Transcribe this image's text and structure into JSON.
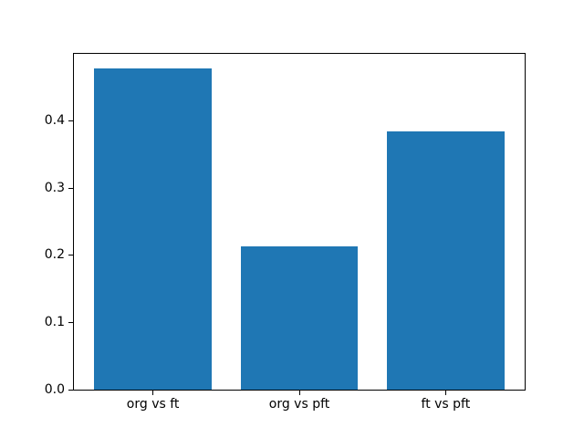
{
  "figure": {
    "background": "#ffffff"
  },
  "chart_data": {
    "type": "bar",
    "title": "",
    "xlabel": "",
    "ylabel": "",
    "categories": [
      "org vs ft",
      "org vs pft",
      "ft vs pft"
    ],
    "values": [
      0.478,
      0.214,
      0.385
    ],
    "ylim": [
      0,
      0.5
    ],
    "xlim": [
      -0.54,
      2.54
    ],
    "bar_width": 0.8,
    "yticks": [
      0.0,
      0.1,
      0.2,
      0.3,
      0.4
    ],
    "ytick_labels": [
      "0.0",
      "0.1",
      "0.2",
      "0.3",
      "0.4"
    ],
    "bar_color": "#1f77b4",
    "spine_color": "#000000",
    "tick_color": "#000000",
    "grid": false,
    "legend": false
  }
}
